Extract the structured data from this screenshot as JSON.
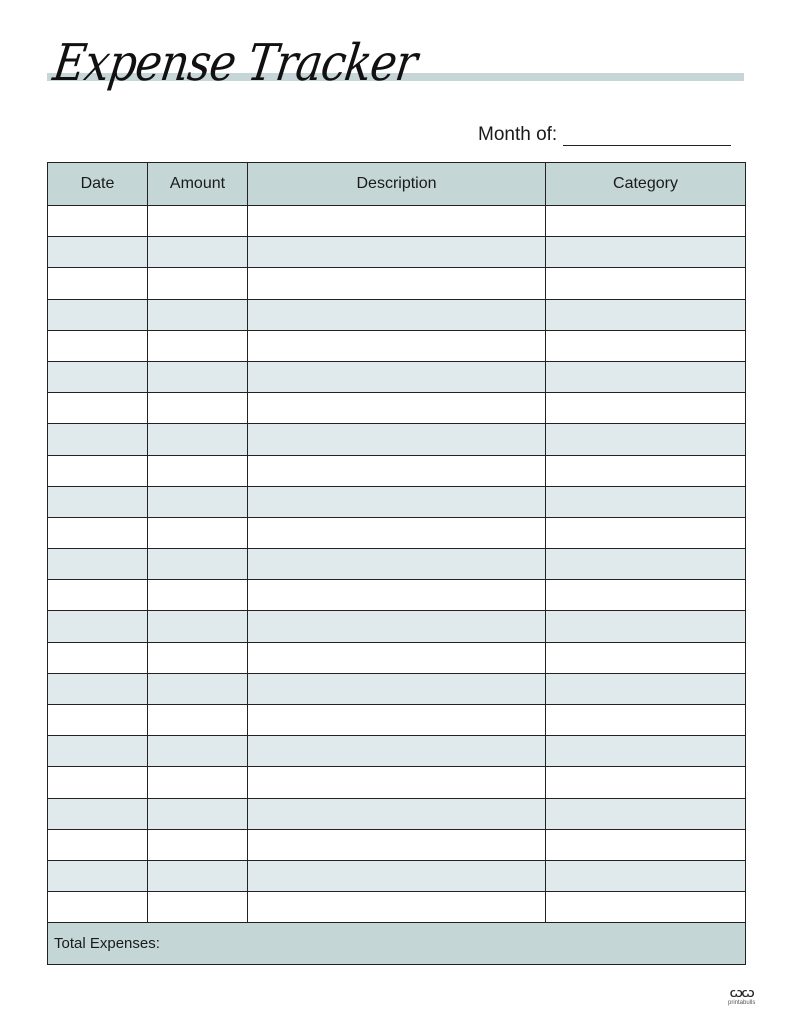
{
  "title": "Expense Tracker",
  "month_label": "Month of:",
  "columns": [
    "Date",
    "Amount",
    "Description",
    "Category"
  ],
  "row_count": 23,
  "total_label": "Total Expenses:",
  "logo_text": "printabulls",
  "colors": {
    "header": "#c4d6d6",
    "alt_row": "#e0eaec",
    "title_bar": "#c6d6d8"
  }
}
